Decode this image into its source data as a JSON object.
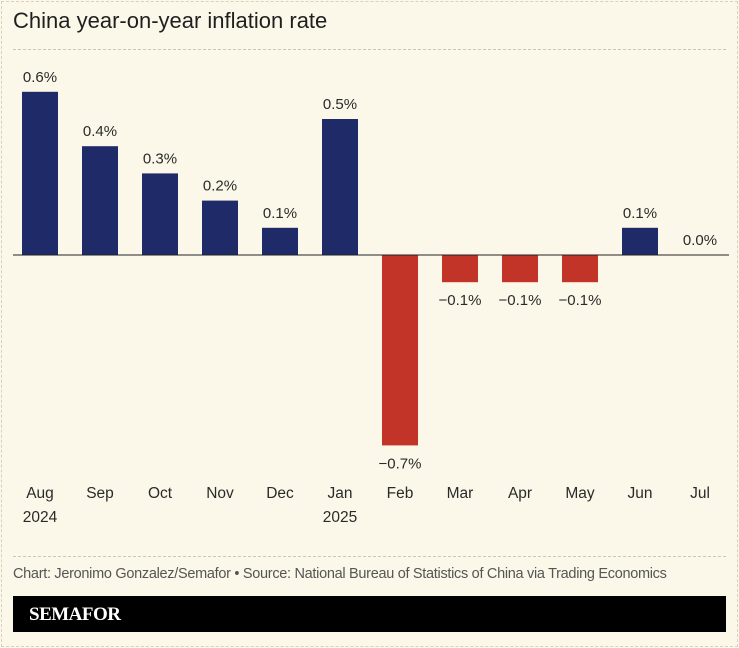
{
  "chart_data": {
    "type": "bar",
    "title": "China year-on-year inflation rate",
    "categories": [
      "Aug\n2024",
      "Sep",
      "Oct",
      "Nov",
      "Dec",
      "Jan\n2025",
      "Feb",
      "Mar",
      "Apr",
      "May",
      "Jun",
      "Jul"
    ],
    "values": [
      0.6,
      0.4,
      0.3,
      0.2,
      0.1,
      0.5,
      -0.7,
      -0.1,
      -0.1,
      -0.1,
      0.1,
      0.0
    ],
    "value_labels": [
      "0.6%",
      "0.4%",
      "0.3%",
      "0.2%",
      "0.1%",
      "0.5%",
      "−0.7%",
      "−0.1%",
      "−0.1%",
      "−0.1%",
      "0.1%",
      "0.0%"
    ],
    "xlabel": "",
    "ylabel": "",
    "ylim": [
      -0.7,
      0.6
    ],
    "grid": false,
    "colors": {
      "positive": "#1f2a68",
      "negative": "#c23427"
    }
  },
  "source": "Chart: Jeronimo Gonzalez/Semafor • Source: National Bureau of Statistics of China via Trading Economics",
  "brand": "SEMAFOR"
}
